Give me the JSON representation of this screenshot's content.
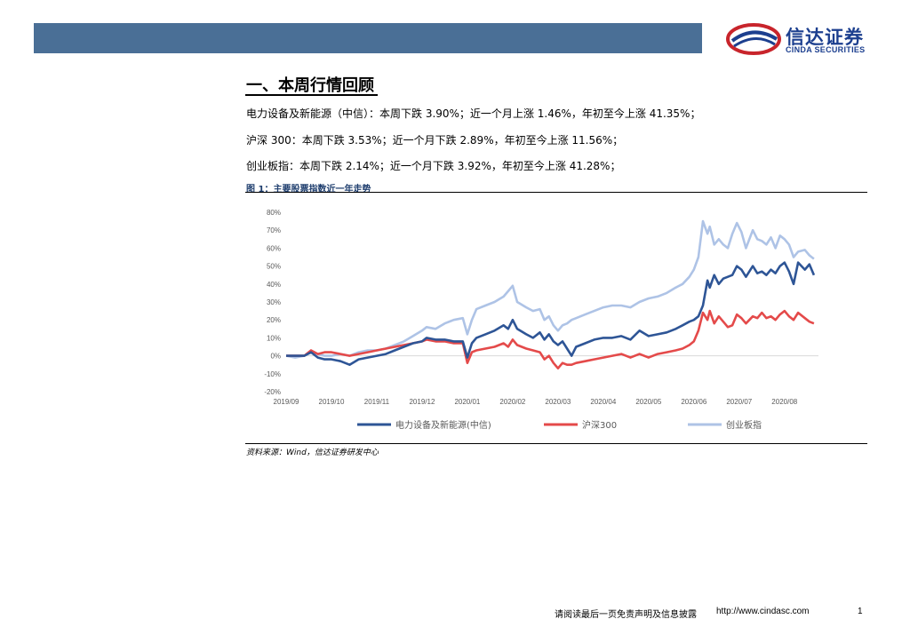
{
  "brand": {
    "name_cn": "信达证券",
    "name_en": "CINDA SECURITIES"
  },
  "section": {
    "title": "一、本周行情回顾"
  },
  "paragraphs": [
    "电力设备及新能源（中信）：本周下跌 3.90%；近一个月上涨 1.46%，年初至今上涨 41.35%；",
    "沪深 300：本周下跌 3.53%；近一个月下跌 2.89%，年初至今上涨 11.56%；",
    "创业板指：本周下跌 2.14%；近一个月下跌 3.92%，年初至今上涨 41.28%；"
  ],
  "figure": {
    "title": "图 1：主要股票指数近一年走势",
    "source": "资料来源：Wind，信达证券研发中心"
  },
  "footer": {
    "disclaimer": "请阅读最后一页免责声明及信息披露",
    "url": "http://www.cindasc.com",
    "page": "1"
  },
  "chart_data": {
    "type": "line",
    "x_ticks": [
      "2019/09",
      "2019/10",
      "2019/11",
      "2019/12",
      "2020/01",
      "2020/02",
      "2020/03",
      "2020/04",
      "2020/05",
      "2020/06",
      "2020/07",
      "2020/08"
    ],
    "y_ticks": [
      "80%",
      "70%",
      "60%",
      "50%",
      "40%",
      "30%",
      "20%",
      "10%",
      "0%",
      "-10%",
      "-20%"
    ],
    "ylim": [
      -20,
      80
    ],
    "grid": false,
    "legend_position": "bottom",
    "series": [
      {
        "name": "电力设备及新能源(中信)",
        "color": "#2e5596",
        "x": [
          0,
          0.2,
          0.4,
          0.55,
          0.7,
          0.85,
          1.0,
          1.2,
          1.4,
          1.6,
          1.8,
          2.0,
          2.2,
          2.4,
          2.6,
          2.8,
          3.0,
          3.1,
          3.3,
          3.5,
          3.7,
          3.9,
          4.0,
          4.1,
          4.2,
          4.4,
          4.6,
          4.8,
          4.9,
          5.0,
          5.1,
          5.3,
          5.45,
          5.6,
          5.7,
          5.8,
          5.9,
          6.0,
          6.1,
          6.2,
          6.3,
          6.4,
          6.6,
          6.8,
          7.0,
          7.2,
          7.4,
          7.6,
          7.8,
          8.0,
          8.2,
          8.4,
          8.6,
          8.75,
          8.9,
          9.0,
          9.1,
          9.2,
          9.3,
          9.35,
          9.45,
          9.55,
          9.65,
          9.75,
          9.85,
          9.95,
          10.05,
          10.15,
          10.3,
          10.4,
          10.5,
          10.6,
          10.7,
          10.8,
          10.9,
          11.0,
          11.1,
          11.2,
          11.3,
          11.45,
          11.55,
          11.65
        ],
        "y": [
          0,
          0,
          0,
          2,
          -1,
          -2,
          -2,
          -3,
          -5,
          -2,
          -1,
          0,
          1,
          3,
          5,
          7,
          8,
          10,
          9,
          9,
          8,
          8,
          -1,
          7,
          10,
          12,
          14,
          17,
          15,
          20,
          15,
          12,
          10,
          13,
          9,
          12,
          8,
          6,
          8,
          4,
          0,
          5,
          7,
          9,
          10,
          10,
          11,
          9,
          14,
          11,
          12,
          13,
          15,
          17,
          19,
          20,
          22,
          28,
          42,
          38,
          45,
          40,
          43,
          44,
          45,
          50,
          48,
          44,
          50,
          46,
          47,
          45,
          48,
          46,
          50,
          52,
          47,
          40,
          52,
          48,
          51,
          45
        ]
      },
      {
        "name": "沪深300",
        "color": "#e44a4a",
        "x": [
          0,
          0.2,
          0.4,
          0.55,
          0.7,
          0.85,
          1.0,
          1.2,
          1.4,
          1.6,
          1.8,
          2.0,
          2.2,
          2.4,
          2.6,
          2.8,
          3.0,
          3.1,
          3.3,
          3.5,
          3.7,
          3.9,
          4.0,
          4.1,
          4.2,
          4.4,
          4.6,
          4.8,
          4.9,
          5.0,
          5.1,
          5.3,
          5.45,
          5.6,
          5.7,
          5.8,
          5.9,
          6.0,
          6.1,
          6.2,
          6.3,
          6.4,
          6.6,
          6.8,
          7.0,
          7.2,
          7.4,
          7.6,
          7.8,
          8.0,
          8.2,
          8.4,
          8.6,
          8.75,
          8.9,
          9.0,
          9.1,
          9.2,
          9.3,
          9.35,
          9.45,
          9.55,
          9.65,
          9.75,
          9.85,
          9.95,
          10.05,
          10.15,
          10.3,
          10.4,
          10.5,
          10.6,
          10.7,
          10.8,
          10.9,
          11.0,
          11.1,
          11.2,
          11.3,
          11.45,
          11.55,
          11.65
        ],
        "y": [
          0,
          0,
          0,
          3,
          1,
          2,
          2,
          1,
          0,
          1,
          2,
          3,
          4,
          5,
          6,
          7,
          8,
          9,
          8,
          8,
          7,
          7,
          -4,
          2,
          3,
          4,
          5,
          7,
          5,
          9,
          6,
          4,
          3,
          2,
          -2,
          0,
          -4,
          -7,
          -4,
          -5,
          -5,
          -4,
          -3,
          -2,
          -1,
          0,
          1,
          -1,
          1,
          -1,
          1,
          2,
          3,
          4,
          6,
          8,
          14,
          24,
          20,
          25,
          18,
          22,
          19,
          16,
          17,
          23,
          21,
          18,
          22,
          21,
          24,
          21,
          22,
          20,
          23,
          25,
          22,
          20,
          24,
          21,
          19,
          18
        ]
      },
      {
        "name": "创业板指",
        "color": "#aec3e6",
        "x": [
          0,
          0.2,
          0.4,
          0.55,
          0.7,
          0.85,
          1.0,
          1.2,
          1.4,
          1.6,
          1.8,
          2.0,
          2.2,
          2.4,
          2.6,
          2.8,
          3.0,
          3.1,
          3.3,
          3.5,
          3.7,
          3.9,
          4.0,
          4.1,
          4.2,
          4.4,
          4.6,
          4.8,
          4.9,
          5.0,
          5.1,
          5.3,
          5.45,
          5.6,
          5.7,
          5.8,
          5.9,
          6.0,
          6.1,
          6.2,
          6.3,
          6.4,
          6.6,
          6.8,
          7.0,
          7.2,
          7.4,
          7.6,
          7.8,
          8.0,
          8.2,
          8.4,
          8.6,
          8.75,
          8.9,
          9.0,
          9.1,
          9.2,
          9.3,
          9.35,
          9.45,
          9.55,
          9.65,
          9.75,
          9.85,
          9.95,
          10.05,
          10.15,
          10.3,
          10.4,
          10.5,
          10.6,
          10.7,
          10.8,
          10.9,
          11.0,
          11.1,
          11.2,
          11.3,
          11.45,
          11.55,
          11.65
        ],
        "y": [
          0,
          -1,
          0,
          2,
          1,
          0,
          0,
          1,
          0,
          2,
          3,
          3,
          4,
          6,
          8,
          11,
          14,
          16,
          15,
          18,
          20,
          21,
          12,
          20,
          26,
          28,
          30,
          33,
          36,
          39,
          30,
          27,
          25,
          26,
          20,
          22,
          17,
          14,
          17,
          18,
          20,
          21,
          23,
          25,
          27,
          28,
          28,
          27,
          30,
          32,
          33,
          35,
          38,
          40,
          44,
          48,
          55,
          75,
          68,
          72,
          62,
          65,
          62,
          60,
          68,
          74,
          69,
          60,
          70,
          65,
          64,
          62,
          66,
          60,
          67,
          65,
          62,
          55,
          58,
          59,
          56,
          54
        ]
      }
    ]
  }
}
